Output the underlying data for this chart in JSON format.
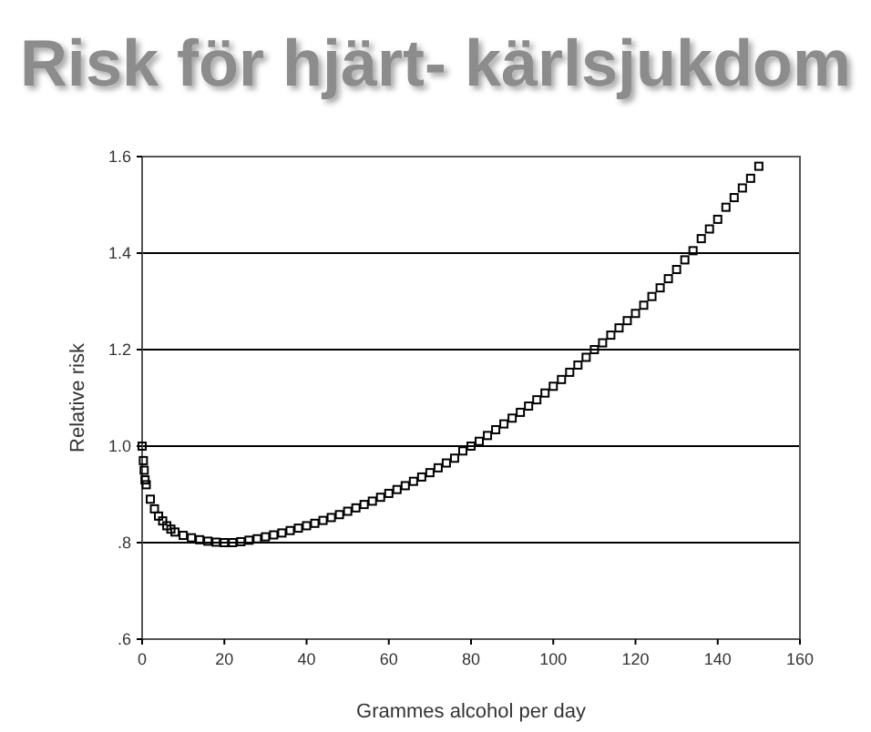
{
  "chart_data": {
    "type": "scatter",
    "title": "Risk för hjärt- kärlsjukdom",
    "xlabel": "Grammes alcohol per day",
    "ylabel": "Relative risk",
    "marker": "square",
    "grid": "y",
    "x": [
      0,
      0.3,
      0.5,
      0.7,
      1,
      2,
      3,
      4,
      5,
      6,
      7,
      8,
      10,
      12,
      14,
      16,
      18,
      20,
      22,
      24,
      26,
      28,
      30,
      32,
      34,
      36,
      38,
      40,
      42,
      44,
      46,
      48,
      50,
      52,
      54,
      56,
      58,
      60,
      62,
      64,
      66,
      68,
      70,
      72,
      74,
      76,
      78,
      80,
      82,
      84,
      86,
      88,
      90,
      92,
      94,
      96,
      98,
      100,
      102,
      104,
      106,
      108,
      110,
      112,
      114,
      116,
      118,
      120,
      122,
      124,
      126,
      128,
      130,
      132,
      134,
      136,
      138,
      140,
      142,
      144,
      146,
      148,
      150
    ],
    "series": [
      {
        "color": "#000000",
        "values": [
          1.0,
          0.97,
          0.95,
          0.93,
          0.92,
          0.89,
          0.87,
          0.855,
          0.845,
          0.835,
          0.828,
          0.822,
          0.815,
          0.81,
          0.806,
          0.803,
          0.801,
          0.8,
          0.8,
          0.802,
          0.805,
          0.808,
          0.812,
          0.816,
          0.82,
          0.825,
          0.83,
          0.835,
          0.84,
          0.846,
          0.852,
          0.858,
          0.865,
          0.872,
          0.879,
          0.886,
          0.894,
          0.902,
          0.91,
          0.918,
          0.927,
          0.936,
          0.945,
          0.955,
          0.965,
          0.975,
          0.99,
          1.0,
          1.01,
          1.022,
          1.034,
          1.046,
          1.058,
          1.07,
          1.083,
          1.096,
          1.11,
          1.124,
          1.138,
          1.153,
          1.168,
          1.184,
          1.2,
          1.214,
          1.23,
          1.245,
          1.26,
          1.275,
          1.292,
          1.31,
          1.328,
          1.347,
          1.366,
          1.386,
          1.405,
          1.43,
          1.45,
          1.47,
          1.495,
          1.515,
          1.535,
          1.555,
          1.58
        ]
      }
    ],
    "xlim": [
      0,
      160
    ],
    "xticks": [
      0,
      20,
      40,
      60,
      80,
      100,
      120,
      140,
      160
    ],
    "ylim": [
      0.6,
      1.6
    ],
    "yticks": [
      {
        "value": 0.6,
        "label": ".6"
      },
      {
        "value": 0.8,
        "label": ".8"
      },
      {
        "value": 1.0,
        "label": "1.0"
      },
      {
        "value": 1.2,
        "label": "1.2"
      },
      {
        "value": 1.4,
        "label": "1.4"
      },
      {
        "value": 1.6,
        "label": "1.6"
      }
    ]
  }
}
